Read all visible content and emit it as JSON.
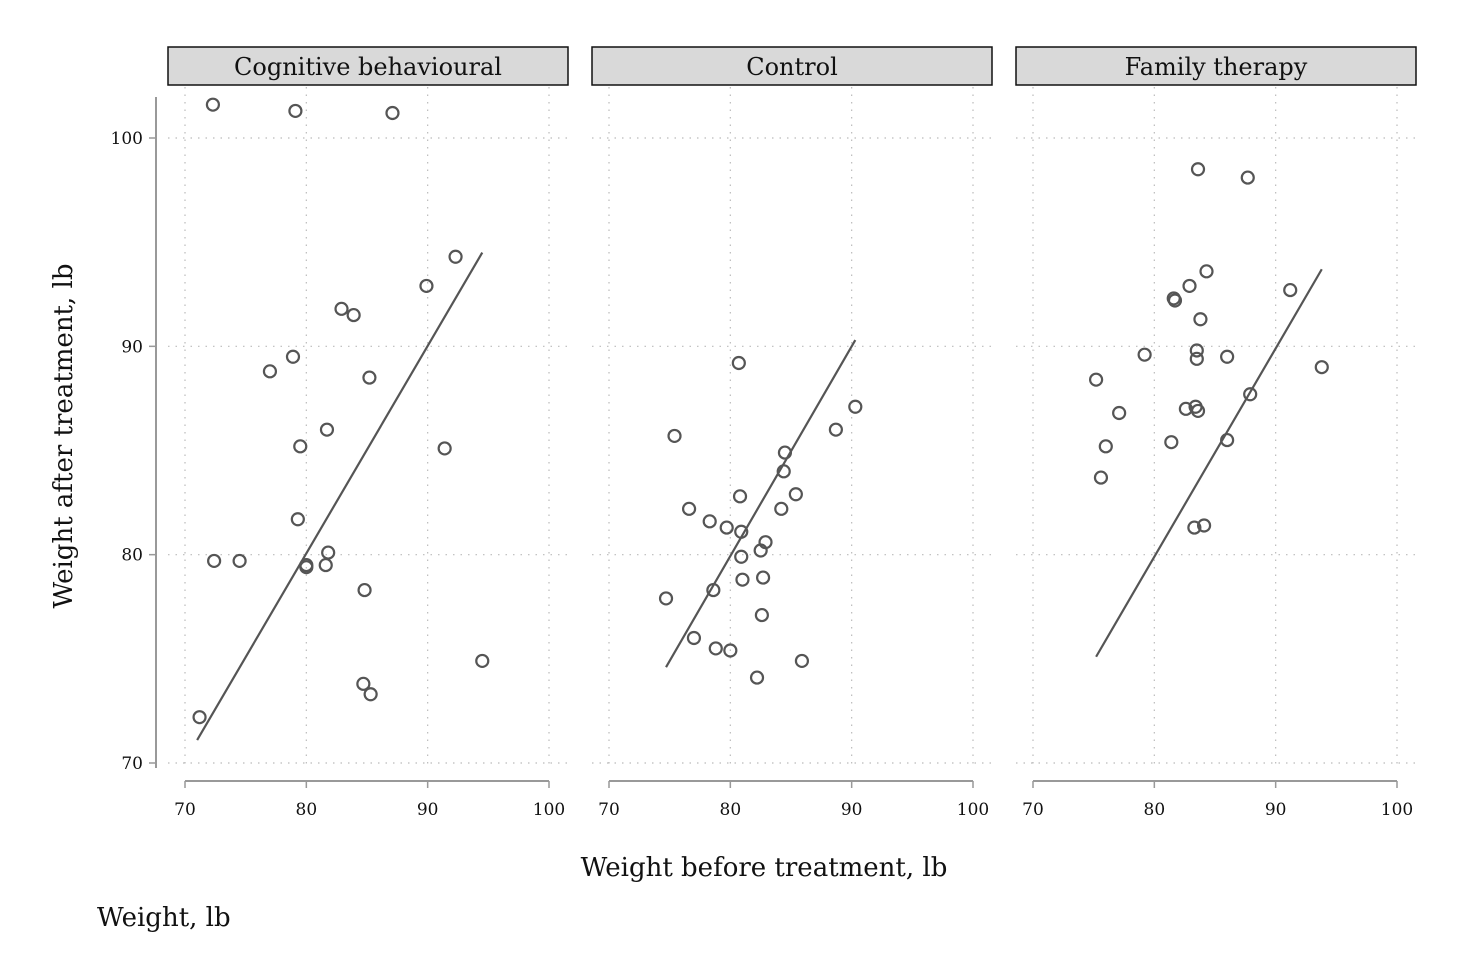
{
  "chart_data": {
    "type": "scatter",
    "xlabel": "Weight before treatment, lb",
    "ylabel": "Weight after treatment, lb",
    "note": "Weight, lb",
    "xlim": [
      70,
      100
    ],
    "ylim": [
      70,
      102
    ],
    "x_ticks": [
      "70",
      "80",
      "90",
      "100"
    ],
    "y_ticks": [
      "70",
      "80",
      "90",
      "100"
    ],
    "grid": true,
    "colors": {
      "marker": "#555555",
      "line": "#555555",
      "strip_fill": "#d9d9d9",
      "axis": "#999999"
    },
    "panels": [
      {
        "label": "Cognitive behavioural",
        "fit_line": [
          [
            71.0,
            71.1
          ],
          [
            94.5,
            94.5
          ]
        ],
        "points": [
          [
            72.3,
            101.6
          ],
          [
            79.1,
            101.3
          ],
          [
            87.1,
            101.2
          ],
          [
            92.3,
            94.3
          ],
          [
            89.9,
            92.9
          ],
          [
            82.9,
            91.8
          ],
          [
            83.9,
            91.5
          ],
          [
            78.9,
            89.5
          ],
          [
            77.0,
            88.8
          ],
          [
            85.2,
            88.5
          ],
          [
            81.7,
            86.0
          ],
          [
            79.5,
            85.2
          ],
          [
            91.4,
            85.1
          ],
          [
            79.3,
            81.7
          ],
          [
            81.8,
            80.1
          ],
          [
            72.4,
            79.7
          ],
          [
            74.5,
            79.7
          ],
          [
            80.0,
            79.5
          ],
          [
            81.6,
            79.5
          ],
          [
            80.0,
            79.4
          ],
          [
            84.8,
            78.3
          ],
          [
            94.5,
            74.9
          ],
          [
            84.7,
            73.8
          ],
          [
            85.3,
            73.3
          ],
          [
            71.2,
            72.2
          ]
        ]
      },
      {
        "label": "Control",
        "fit_line": [
          [
            74.7,
            74.6
          ],
          [
            90.3,
            90.3
          ]
        ],
        "points": [
          [
            80.7,
            89.2
          ],
          [
            90.3,
            87.1
          ],
          [
            88.7,
            86.0
          ],
          [
            75.4,
            85.7
          ],
          [
            84.5,
            84.9
          ],
          [
            84.4,
            84.0
          ],
          [
            80.8,
            82.8
          ],
          [
            85.4,
            82.9
          ],
          [
            76.6,
            82.2
          ],
          [
            84.2,
            82.2
          ],
          [
            78.3,
            81.6
          ],
          [
            79.7,
            81.3
          ],
          [
            80.9,
            81.1
          ],
          [
            82.9,
            80.6
          ],
          [
            82.5,
            80.2
          ],
          [
            80.9,
            79.9
          ],
          [
            81.0,
            78.8
          ],
          [
            82.7,
            78.9
          ],
          [
            74.7,
            77.9
          ],
          [
            78.6,
            78.3
          ],
          [
            82.6,
            77.1
          ],
          [
            77.0,
            76.0
          ],
          [
            78.8,
            75.5
          ],
          [
            80.0,
            75.4
          ],
          [
            85.9,
            74.9
          ],
          [
            82.2,
            74.1
          ]
        ]
      },
      {
        "label": "Family therapy",
        "fit_line": [
          [
            75.2,
            75.1
          ],
          [
            93.8,
            93.7
          ]
        ],
        "points": [
          [
            83.6,
            98.5
          ],
          [
            87.7,
            98.1
          ],
          [
            84.3,
            93.6
          ],
          [
            91.2,
            92.7
          ],
          [
            82.9,
            92.9
          ],
          [
            81.6,
            92.3
          ],
          [
            81.7,
            92.2
          ],
          [
            83.8,
            91.3
          ],
          [
            83.5,
            89.8
          ],
          [
            79.2,
            89.6
          ],
          [
            83.5,
            89.4
          ],
          [
            86.0,
            89.5
          ],
          [
            93.8,
            89.0
          ],
          [
            75.2,
            88.4
          ],
          [
            87.9,
            87.7
          ],
          [
            77.1,
            86.8
          ],
          [
            82.6,
            87.0
          ],
          [
            83.4,
            87.1
          ],
          [
            83.6,
            86.9
          ],
          [
            76.0,
            85.2
          ],
          [
            81.4,
            85.4
          ],
          [
            86.0,
            85.5
          ],
          [
            75.6,
            83.7
          ],
          [
            83.3,
            81.3
          ],
          [
            84.1,
            81.4
          ]
        ]
      }
    ]
  }
}
